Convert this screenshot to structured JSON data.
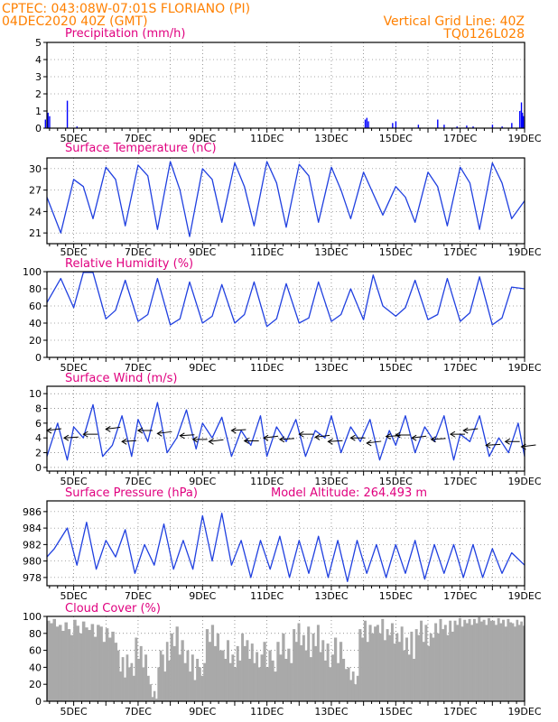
{
  "header": {
    "line1": "CPTEC:   043:08W-07:01S   FLORIANO (PI)",
    "line2_left": "04DEC2020 40Z (GMT)",
    "line2_right": "Vertical Grid Line: 40Z",
    "line3_right": "TQ0126L028",
    "color": "#ff8000"
  },
  "colors": {
    "title": "#e0007f",
    "line": "#2040e0",
    "bar": "#0000ff",
    "cloud": "#a9a9a9",
    "arrow": "#000000"
  },
  "x_tick_labels": [
    "5DEC",
    "7DEC",
    "9DEC",
    "11DEC",
    "13DEC",
    "15DEC",
    "17DEC",
    "19DEC"
  ],
  "chart_data": [
    {
      "type": "bar",
      "title": "Precipitation (mm/h)",
      "x_days": [
        4.12,
        4.2,
        4.25,
        4.8,
        5.1,
        14.05,
        14.1,
        14.15,
        14.9,
        15.0,
        15.7,
        16.3,
        16.5,
        16.9,
        17.2,
        17.4,
        18.0,
        18.3,
        18.6,
        18.85,
        18.9,
        18.93,
        18.96
      ],
      "values": [
        0.5,
        0.9,
        0.7,
        1.6,
        0.1,
        0.5,
        0.6,
        0.4,
        0.3,
        0.4,
        0.2,
        0.5,
        0.2,
        0.1,
        0.15,
        0.1,
        0.2,
        0.1,
        0.3,
        1.0,
        1.5,
        0.9,
        0.7
      ],
      "yticks": [
        0,
        1,
        2,
        3,
        4,
        5
      ],
      "ylim": [
        0,
        5
      ],
      "xlim": [
        4.17,
        19.0
      ]
    },
    {
      "type": "line",
      "title": "Surface Temperature (nC)",
      "yticks": [
        21,
        24,
        27,
        30
      ],
      "ylim": [
        19.5,
        31.5
      ],
      "xlim": [
        4.17,
        19.0
      ],
      "x_days": [
        4.17,
        4.6,
        5.0,
        5.3,
        5.6,
        6.0,
        6.3,
        6.6,
        7.0,
        7.3,
        7.6,
        8.0,
        8.3,
        8.6,
        9.0,
        9.3,
        9.6,
        10.0,
        10.3,
        10.6,
        11.0,
        11.3,
        11.6,
        12.0,
        12.3,
        12.6,
        13.0,
        13.3,
        13.6,
        14.0,
        14.3,
        14.6,
        15.0,
        15.3,
        15.6,
        16.0,
        16.3,
        16.6,
        17.0,
        17.3,
        17.6,
        18.0,
        18.3,
        18.6,
        19.0
      ],
      "values": [
        26,
        21.0,
        28.5,
        27.5,
        23.0,
        30.2,
        28.5,
        22.0,
        30.5,
        29.0,
        21.5,
        31.0,
        27.0,
        20.5,
        30.0,
        28.5,
        22.5,
        30.8,
        27.5,
        22.0,
        31.0,
        28.0,
        21.8,
        30.6,
        29.0,
        22.5,
        30.2,
        27.0,
        23.0,
        29.5,
        26.5,
        23.5,
        27.5,
        26.0,
        22.5,
        29.5,
        27.5,
        22.0,
        30.2,
        28.0,
        21.5,
        30.8,
        28.0,
        23.0,
        25.5
      ]
    },
    {
      "type": "line",
      "title": "Relative Humidity (%)",
      "yticks": [
        0,
        20,
        40,
        60,
        80,
        100
      ],
      "ylim": [
        0,
        100
      ],
      "xlim": [
        4.17,
        19.0
      ],
      "x_days": [
        4.17,
        4.6,
        5.0,
        5.3,
        5.6,
        6.0,
        6.3,
        6.6,
        7.0,
        7.3,
        7.6,
        8.0,
        8.3,
        8.6,
        9.0,
        9.3,
        9.6,
        10.0,
        10.3,
        10.6,
        11.0,
        11.3,
        11.6,
        12.0,
        12.3,
        12.6,
        13.0,
        13.3,
        13.6,
        14.0,
        14.3,
        14.6,
        15.0,
        15.3,
        15.6,
        16.0,
        16.3,
        16.6,
        17.0,
        17.3,
        17.6,
        18.0,
        18.3,
        18.6,
        19.0
      ],
      "values": [
        64,
        92,
        58,
        99,
        99,
        45,
        55,
        90,
        42,
        50,
        92,
        38,
        45,
        88,
        40,
        48,
        85,
        40,
        50,
        88,
        36,
        45,
        86,
        40,
        46,
        88,
        42,
        50,
        80,
        44,
        96,
        60,
        48,
        58,
        90,
        44,
        50,
        92,
        42,
        52,
        94,
        38,
        46,
        82,
        80
      ]
    },
    {
      "type": "line",
      "title": "Surface Wind (m/s)",
      "yticks": [
        0,
        2,
        4,
        6,
        8,
        10
      ],
      "ylim": [
        -0.5,
        11
      ],
      "xlim": [
        4.17,
        19.0
      ],
      "x_days": [
        4.17,
        4.5,
        4.8,
        5.0,
        5.3,
        5.6,
        5.9,
        6.2,
        6.5,
        6.8,
        7.0,
        7.3,
        7.6,
        7.9,
        8.2,
        8.5,
        8.8,
        9.0,
        9.3,
        9.6,
        9.9,
        10.2,
        10.5,
        10.8,
        11.0,
        11.3,
        11.6,
        11.9,
        12.2,
        12.5,
        12.8,
        13.0,
        13.3,
        13.6,
        13.9,
        14.2,
        14.5,
        14.8,
        15.0,
        15.3,
        15.6,
        15.9,
        16.2,
        16.5,
        16.8,
        17.0,
        17.3,
        17.6,
        17.9,
        18.2,
        18.5,
        18.8,
        19.0
      ],
      "values": [
        1.5,
        6.0,
        1.0,
        5.5,
        4.0,
        8.5,
        1.5,
        3.0,
        7.0,
        1.5,
        6.5,
        3.5,
        8.8,
        2.0,
        4.0,
        7.8,
        2.5,
        6.0,
        4.0,
        6.8,
        1.5,
        5.0,
        3.0,
        7.0,
        1.5,
        5.5,
        3.5,
        6.5,
        1.5,
        5.0,
        4.0,
        7.0,
        2.0,
        5.5,
        3.5,
        6.5,
        1.0,
        5.0,
        3.0,
        7.0,
        2.0,
        5.5,
        3.5,
        7.0,
        1.0,
        4.5,
        3.5,
        7.0,
        1.5,
        4.0,
        2.0,
        6.0,
        1.5
      ],
      "arrow_x_days": [
        4.17,
        4.7,
        5.3,
        6.0,
        6.5,
        7.0,
        7.6,
        8.3,
        8.7,
        9.2,
        9.9,
        10.3,
        10.9,
        11.4,
        12.0,
        12.5,
        12.9,
        13.6,
        14.1,
        14.7,
        15.0,
        15.5,
        16.1,
        16.7,
        17.1,
        17.8,
        18.4,
        18.9
      ],
      "arrow_speeds": [
        5.0,
        4.0,
        4.5,
        5.2,
        3.5,
        5.0,
        4.6,
        4.3,
        3.8,
        3.5,
        5.0,
        3.6,
        4.0,
        3.8,
        4.5,
        4.1,
        3.5,
        4.0,
        3.3,
        4.2,
        4.4,
        4.0,
        3.8,
        4.5,
        5.0,
        3.0,
        3.5,
        2.8
      ]
    },
    {
      "type": "line",
      "title": "Surface Pressure (hPa)",
      "annotation": "Model Altitude: 264.493 m",
      "yticks": [
        978,
        980,
        982,
        984,
        986
      ],
      "ylim": [
        977,
        987.3
      ],
      "xlim": [
        4.17,
        19.0
      ],
      "x_days": [
        4.17,
        4.4,
        4.8,
        5.1,
        5.4,
        5.7,
        6.0,
        6.3,
        6.6,
        6.9,
        7.2,
        7.5,
        7.8,
        8.1,
        8.4,
        8.7,
        9.0,
        9.3,
        9.6,
        9.9,
        10.2,
        10.5,
        10.8,
        11.1,
        11.4,
        11.7,
        12.0,
        12.3,
        12.6,
        12.9,
        13.2,
        13.5,
        13.8,
        14.1,
        14.4,
        14.7,
        15.0,
        15.3,
        15.6,
        15.9,
        16.2,
        16.5,
        16.8,
        17.1,
        17.4,
        17.7,
        18.0,
        18.3,
        18.6,
        19.0
      ],
      "values": [
        980.5,
        981.5,
        984.0,
        979.5,
        984.7,
        979.0,
        982.5,
        980.5,
        983.8,
        978.5,
        982.0,
        979.5,
        984.5,
        979.0,
        982.5,
        979.0,
        985.5,
        980.0,
        985.8,
        979.5,
        982.5,
        978.0,
        982.5,
        979.0,
        983.0,
        978.0,
        982.5,
        978.5,
        983.0,
        978.0,
        982.5,
        977.5,
        982.5,
        978.5,
        982.0,
        978.0,
        982.0,
        978.5,
        982.5,
        977.8,
        982.0,
        978.5,
        982.0,
        978.0,
        982.0,
        978.0,
        981.5,
        978.5,
        981.0,
        979.5
      ]
    },
    {
      "type": "bar",
      "title": "Cloud Cover (%)",
      "yticks": [
        0,
        20,
        40,
        60,
        80,
        100
      ],
      "ylim": [
        0,
        100
      ],
      "xlim": [
        4.17,
        19.0
      ],
      "segments": [
        {
          "from": 4.17,
          "to": 6.35,
          "levels": [
            95,
            92,
            97,
            88,
            90,
            83,
            93,
            85,
            78,
            96,
            89,
            80,
            94,
            87,
            84,
            91,
            76,
            90,
            88,
            70,
            86,
            75,
            82,
            69
          ]
        },
        {
          "from": 6.35,
          "to": 6.9,
          "levels": [
            60,
            35,
            52,
            28,
            55,
            40,
            45,
            30
          ]
        },
        {
          "from": 6.9,
          "to": 7.35,
          "levels": [
            75,
            50,
            65,
            40,
            55,
            30
          ]
        },
        {
          "from": 7.35,
          "to": 7.6,
          "levels": [
            20,
            5,
            12,
            3
          ]
        },
        {
          "from": 7.6,
          "to": 8.0,
          "levels": [
            40,
            60,
            55,
            35,
            70,
            48
          ]
        },
        {
          "from": 8.0,
          "to": 8.5,
          "levels": [
            80,
            65,
            88,
            55,
            72,
            45
          ]
        },
        {
          "from": 8.5,
          "to": 9.1,
          "levels": [
            60,
            35,
            55,
            25,
            50,
            40,
            30,
            45
          ]
        },
        {
          "from": 9.1,
          "to": 9.6,
          "levels": [
            85,
            70,
            90,
            65,
            80,
            60
          ]
        },
        {
          "from": 9.6,
          "to": 10.2,
          "levels": [
            60,
            50,
            72,
            45,
            55,
            40,
            65,
            48
          ]
        },
        {
          "from": 10.2,
          "to": 10.8,
          "levels": [
            80,
            65,
            72,
            50,
            68,
            45,
            58,
            40
          ]
        },
        {
          "from": 10.8,
          "to": 11.3,
          "levels": [
            55,
            70,
            40,
            60,
            48,
            35
          ]
        },
        {
          "from": 11.3,
          "to": 11.8,
          "levels": [
            70,
            55,
            80,
            50,
            62,
            45
          ]
        },
        {
          "from": 11.8,
          "to": 12.4,
          "levels": [
            85,
            70,
            92,
            66,
            78,
            60,
            88,
            52
          ]
        },
        {
          "from": 12.4,
          "to": 13.0,
          "levels": [
            80,
            65,
            90,
            58,
            72,
            48,
            68,
            40
          ]
        },
        {
          "from": 13.0,
          "to": 13.5,
          "levels": [
            55,
            75,
            45,
            70,
            50,
            38
          ]
        },
        {
          "from": 13.5,
          "to": 13.85,
          "levels": [
            40,
            25,
            35,
            20,
            30
          ]
        },
        {
          "from": 13.85,
          "to": 14.4,
          "levels": [
            85,
            75,
            95,
            70,
            90,
            80,
            88
          ]
        },
        {
          "from": 14.4,
          "to": 15.0,
          "levels": [
            90,
            80,
            97,
            72,
            85,
            78,
            92,
            68
          ]
        },
        {
          "from": 15.0,
          "to": 15.6,
          "levels": [
            80,
            70,
            88,
            60,
            75,
            55,
            82,
            50
          ]
        },
        {
          "from": 15.6,
          "to": 16.2,
          "levels": [
            85,
            78,
            95,
            70,
            90,
            65,
            80,
            75
          ]
        },
        {
          "from": 16.2,
          "to": 16.8,
          "levels": [
            92,
            80,
            97,
            85,
            90,
            78,
            95,
            82
          ]
        },
        {
          "from": 16.8,
          "to": 17.4,
          "levels": [
            95,
            90,
            98,
            88,
            96,
            92,
            97,
            90
          ]
        },
        {
          "from": 17.4,
          "to": 18.0,
          "levels": [
            97,
            92,
            99,
            94,
            96,
            90,
            98,
            95
          ]
        },
        {
          "from": 18.0,
          "to": 18.6,
          "levels": [
            95,
            90,
            98,
            92,
            96,
            88,
            97,
            93
          ]
        },
        {
          "from": 18.6,
          "to": 19.0,
          "levels": [
            92,
            88,
            96,
            90,
            94,
            89
          ]
        }
      ]
    }
  ]
}
